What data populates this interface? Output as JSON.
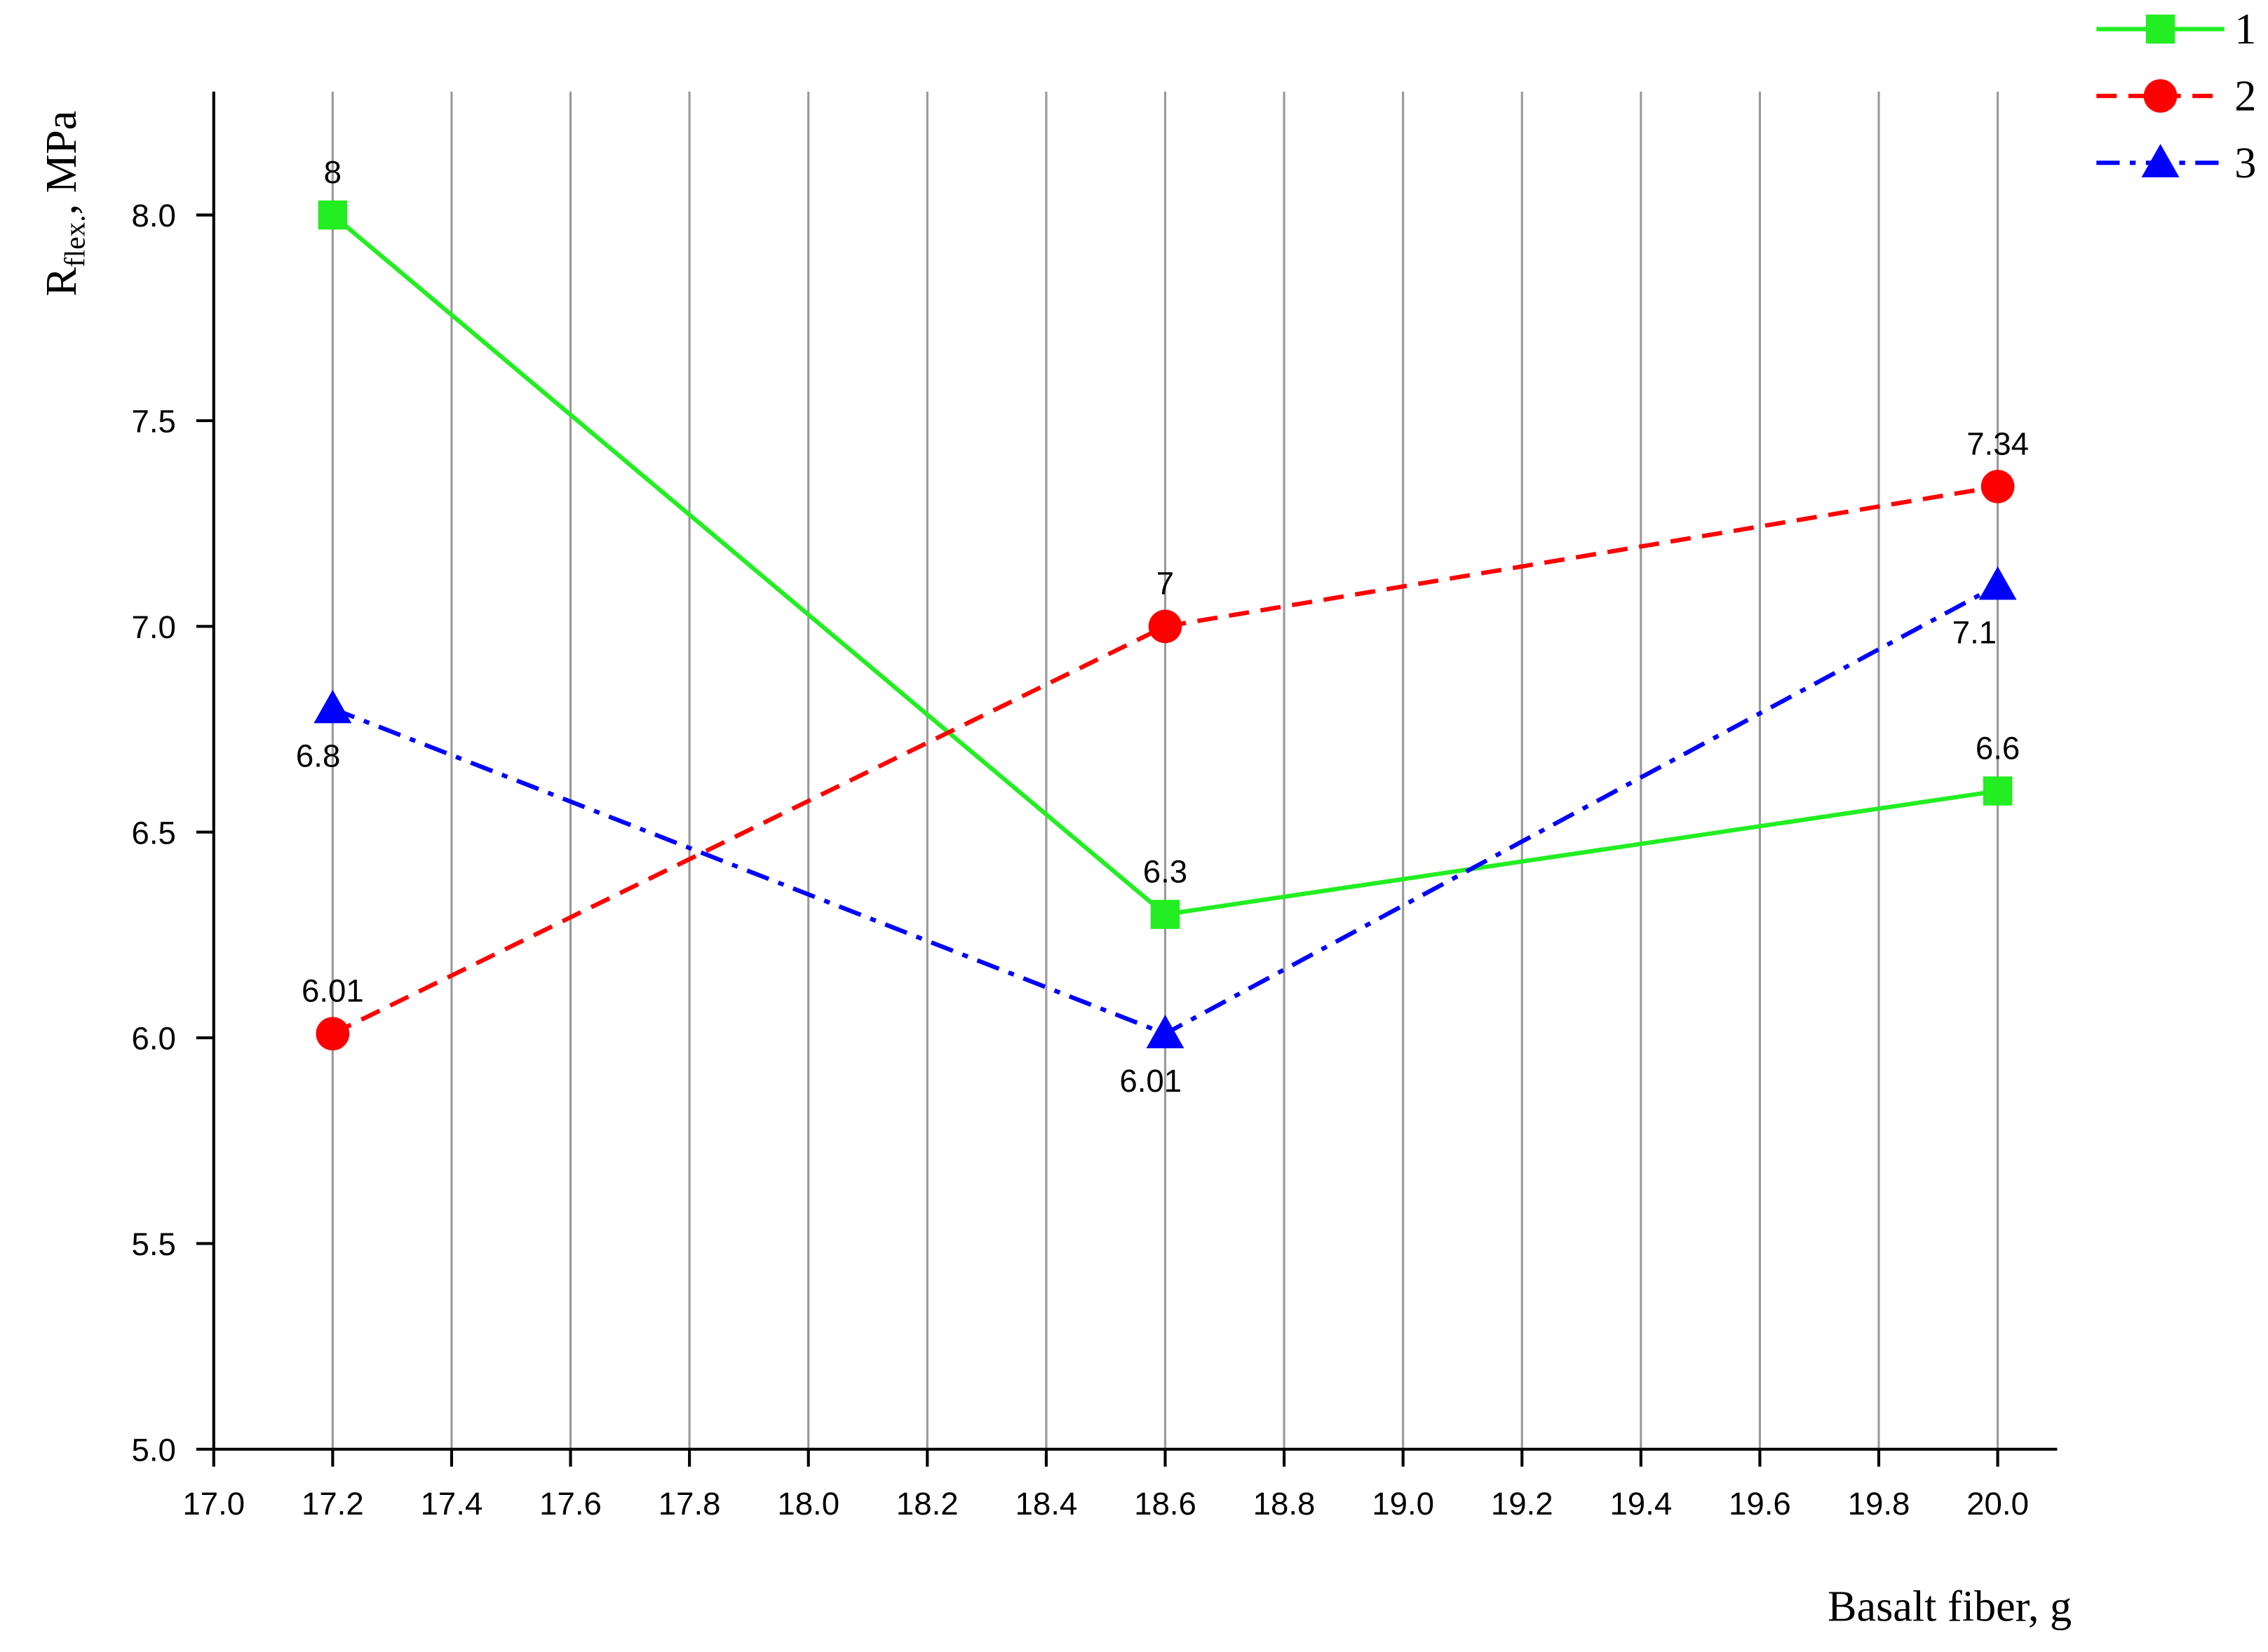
{
  "chart_data": {
    "type": "line",
    "x": [
      17.2,
      18.6,
      20.0
    ],
    "series": [
      {
        "name": "1",
        "color": "#22ee22",
        "marker": "square",
        "line_style": "solid",
        "values": [
          8,
          6.3,
          6.6
        ]
      },
      {
        "name": "2",
        "color": "#ff0000",
        "marker": "circle",
        "line_style": "dash",
        "values": [
          6.01,
          7,
          7.34
        ]
      },
      {
        "name": "3",
        "color": "#0000ff",
        "marker": "triangle",
        "line_style": "dashdot",
        "values": [
          6.8,
          6.01,
          7.1
        ]
      }
    ],
    "xlabel": "Basalt fiber, g",
    "ylabel": {
      "main": "R",
      "sub": "flex.",
      "rest": ", MPa"
    },
    "xlim": [
      17.0,
      20.1
    ],
    "ylim": [
      5.0,
      8.3
    ],
    "xticks": [
      {
        "value": 17,
        "label": "17.0"
      },
      17.2,
      17.4,
      17.6,
      17.8,
      {
        "value": 18,
        "label": "18.0"
      },
      18.2,
      18.4,
      18.6,
      18.8,
      {
        "value": 19,
        "label": "19.0"
      },
      19.2,
      19.4,
      19.6,
      19.8,
      {
        "value": 20,
        "label": "20.0"
      }
    ],
    "yticks": [
      {
        "value": 5,
        "label": "5.0"
      },
      5.5,
      {
        "value": 6,
        "label": "6.0"
      },
      6.5,
      {
        "value": 7,
        "label": "7.0"
      },
      7.5,
      {
        "value": 8,
        "label": "8.0"
      }
    ],
    "grid": "x",
    "legend": "top-right",
    "data_labels": true
  }
}
